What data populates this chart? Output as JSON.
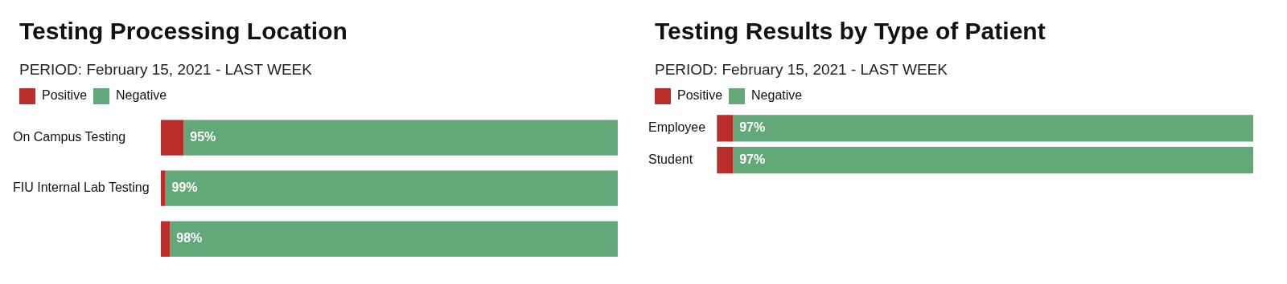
{
  "chart_data": [
    {
      "type": "bar",
      "orientation": "horizontal",
      "stacked": true,
      "title": "Testing Processing Location",
      "subtitle": "PERIOD: February 15, 2021 - LAST WEEK",
      "categories": [
        "On Campus Testing",
        "FIU Internal Lab Testing",
        null
      ],
      "xlim": [
        0,
        100
      ],
      "tick_labels": "y",
      "legend": "top left",
      "series": [
        {
          "name": "Positive",
          "color": "#b92e2a",
          "values": [
            5,
            1,
            2
          ],
          "value_labels": [
            null,
            null,
            null
          ]
        },
        {
          "name": "Negative",
          "color": "#63a878",
          "values": [
            95,
            99,
            98
          ],
          "value_labels": [
            "95%",
            "99%",
            "98%"
          ]
        }
      ]
    },
    {
      "type": "bar",
      "orientation": "horizontal",
      "stacked": true,
      "title": "Testing Results by Type of Patient",
      "subtitle": "PERIOD: February 15, 2021 - LAST WEEK",
      "categories": [
        "Employee",
        "Student"
      ],
      "xlim": [
        0,
        100
      ],
      "tick_labels": "y",
      "legend": "top left",
      "series": [
        {
          "name": "Positive",
          "color": "#b92e2a",
          "values": [
            3,
            3
          ],
          "value_labels": [
            null,
            null
          ]
        },
        {
          "name": "Negative",
          "color": "#63a878",
          "values": [
            97,
            97
          ],
          "value_labels": [
            "97%",
            "97%"
          ]
        }
      ]
    }
  ]
}
